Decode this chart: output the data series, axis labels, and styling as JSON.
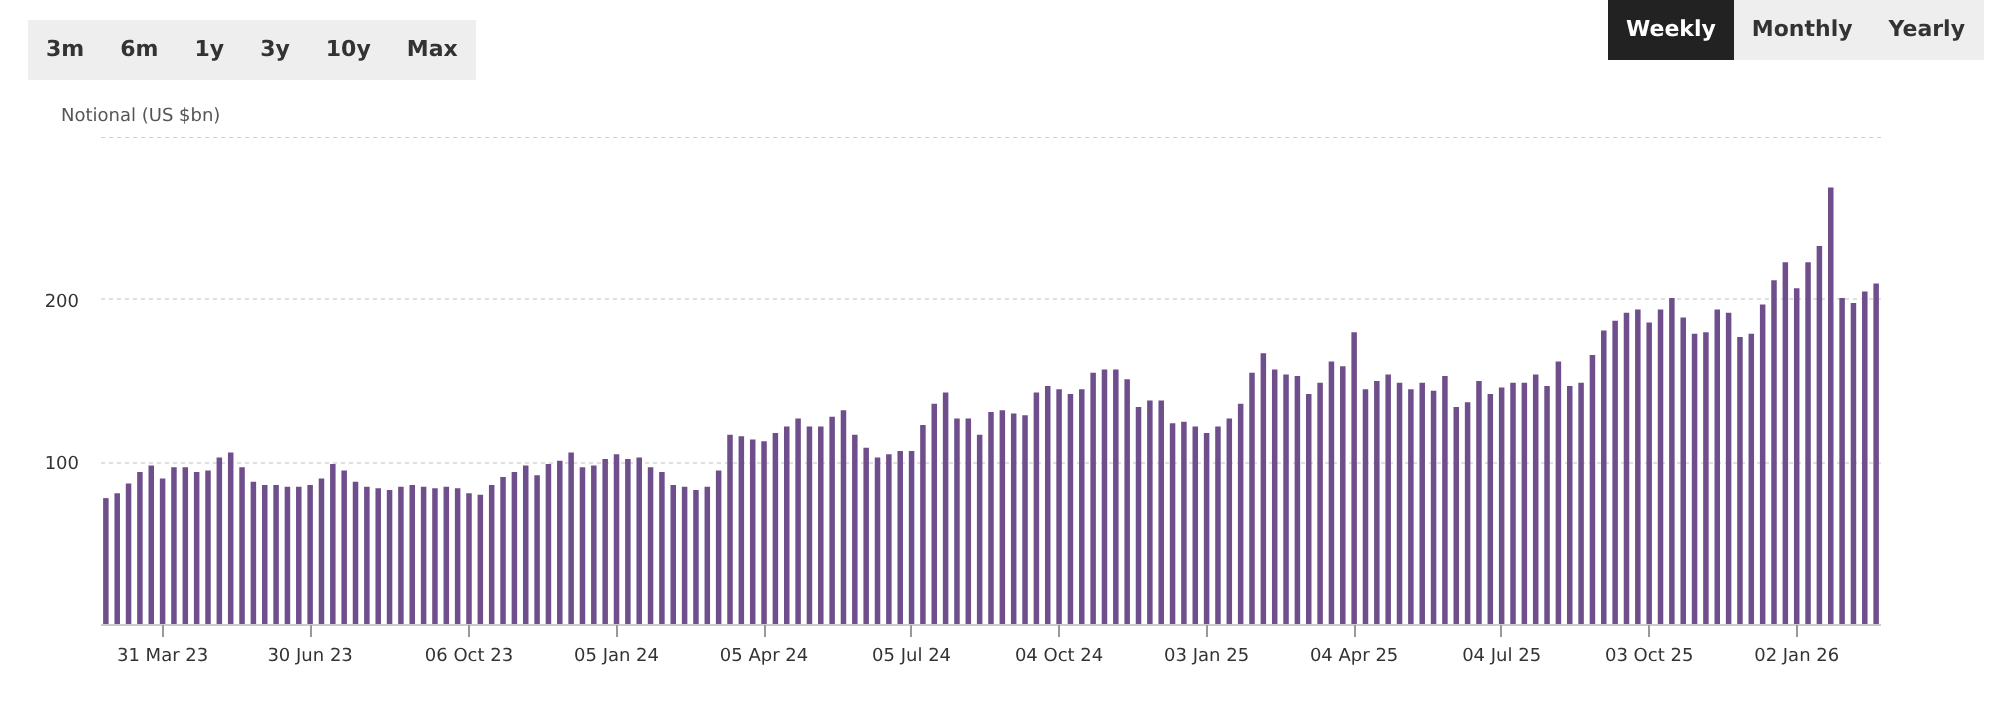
{
  "chart_data": {
    "type": "bar",
    "ylabel": "Notional (US $bn)",
    "annotations": [
      "3m",
      "6m",
      "1y",
      "3y",
      "10y",
      "Max",
      "Weekly",
      "Monthly",
      "Yearly"
    ],
    "x": [
      "2023-02-24",
      "2023-03-03",
      "2023-03-10",
      "2023-03-17",
      "2023-03-24",
      "2023-03-31",
      "2023-04-07",
      "2023-04-14",
      "2023-04-21",
      "2023-04-28",
      "2023-05-05",
      "2023-05-12",
      "2023-05-19",
      "2023-05-26",
      "2023-06-02",
      "2023-06-09",
      "2023-06-16",
      "2023-06-23",
      "2023-06-30",
      "2023-07-07",
      "2023-07-14",
      "2023-07-21",
      "2023-07-28",
      "2023-08-04",
      "2023-08-11",
      "2023-08-18",
      "2023-08-25",
      "2023-09-01",
      "2023-09-08",
      "2023-09-15",
      "2023-09-22",
      "2023-09-29",
      "2023-10-06",
      "2023-10-13",
      "2023-10-20",
      "2023-10-27",
      "2023-11-03",
      "2023-11-10",
      "2023-11-17",
      "2023-11-24",
      "2023-12-01",
      "2023-12-08",
      "2023-12-15",
      "2023-12-22",
      "2023-12-29",
      "2024-01-05",
      "2024-01-12",
      "2024-01-19",
      "2024-01-26",
      "2024-02-02",
      "2024-02-09",
      "2024-02-16",
      "2024-02-23",
      "2024-03-01",
      "2024-03-08",
      "2024-03-15",
      "2024-03-22",
      "2024-03-29",
      "2024-04-05",
      "2024-04-12",
      "2024-04-19",
      "2024-04-26",
      "2024-05-03",
      "2024-05-10",
      "2024-05-17",
      "2024-05-24",
      "2024-05-31",
      "2024-06-07",
      "2024-06-14",
      "2024-06-21",
      "2024-06-28",
      "2024-07-05",
      "2024-07-12",
      "2024-07-19",
      "2024-07-26",
      "2024-08-02",
      "2024-08-09",
      "2024-08-16",
      "2024-08-23",
      "2024-08-30",
      "2024-09-06",
      "2024-09-13",
      "2024-09-20",
      "2024-09-27",
      "2024-10-04",
      "2024-10-11",
      "2024-10-18",
      "2024-10-25",
      "2024-11-01",
      "2024-11-08",
      "2024-11-15",
      "2024-11-22",
      "2024-11-29",
      "2024-12-06",
      "2024-12-13",
      "2024-12-20",
      "2024-12-27",
      "2025-01-03",
      "2025-01-10",
      "2025-01-17",
      "2025-01-24",
      "2025-01-31",
      "2025-02-07",
      "2025-02-14",
      "2025-02-21",
      "2025-02-28",
      "2025-03-07",
      "2025-03-14",
      "2025-03-21",
      "2025-03-28",
      "2025-04-04",
      "2025-04-11",
      "2025-04-18",
      "2025-04-25",
      "2025-05-02",
      "2025-05-09",
      "2025-05-16",
      "2025-05-23",
      "2025-05-30",
      "2025-06-06",
      "2025-06-13",
      "2025-06-20",
      "2025-06-27",
      "2025-07-04",
      "2025-07-11",
      "2025-07-18",
      "2025-07-25",
      "2025-08-01",
      "2025-08-08",
      "2025-08-15",
      "2025-08-22",
      "2025-08-29",
      "2025-09-05",
      "2025-09-12",
      "2025-09-19",
      "2025-09-26",
      "2025-10-03",
      "2025-10-10",
      "2025-10-17",
      "2025-10-24",
      "2025-10-31",
      "2025-11-07",
      "2025-11-14",
      "2025-11-21",
      "2025-11-28",
      "2025-12-05",
      "2025-12-12",
      "2025-12-19",
      "2025-12-26",
      "2026-01-02",
      "2026-01-09",
      "2026-01-16",
      "2026-01-23",
      "2026-01-30",
      "2026-02-06",
      "2026-02-13",
      "2026-02-20"
    ],
    "values": [
      78,
      81,
      87,
      94,
      98,
      90,
      97,
      97,
      94,
      95,
      103,
      106,
      97,
      88,
      86,
      86,
      85,
      85,
      86,
      90,
      99,
      95,
      88,
      85,
      84,
      83,
      85,
      86,
      85,
      84,
      85,
      84,
      81,
      80,
      86,
      91,
      94,
      98,
      92,
      99,
      101,
      106,
      97,
      98,
      102,
      105,
      102,
      103,
      97,
      94,
      86,
      85,
      83,
      85,
      95,
      117,
      116,
      114,
      113,
      118,
      122,
      127,
      122,
      122,
      128,
      132,
      117,
      109,
      103,
      105,
      107,
      107,
      123,
      136,
      143,
      127,
      127,
      117,
      131,
      132,
      130,
      129,
      143,
      147,
      145,
      142,
      145,
      155,
      157,
      157,
      151,
      134,
      138,
      138,
      124,
      125,
      122,
      118,
      122,
      127,
      136,
      155,
      167,
      157,
      154,
      153,
      142,
      149,
      162,
      159,
      180,
      145,
      150,
      154,
      149,
      145,
      149,
      144,
      153,
      134,
      137,
      150,
      142,
      146,
      149,
      149,
      154,
      147,
      162,
      147,
      149,
      166,
      181,
      187,
      192,
      194,
      186,
      194,
      201,
      189,
      179,
      180,
      194,
      192,
      177,
      179,
      197,
      212,
      223,
      207,
      223,
      233,
      269,
      201,
      198,
      205,
      210
    ],
    "color": "#6f4e8c",
    "xlim": [
      "2023-02-21",
      "2026-02-23"
    ],
    "xticks": [
      {
        "value": "2023-03-31",
        "label": "31 Mar 23"
      },
      {
        "value": "2023-06-30",
        "label": "30 Jun 23"
      },
      {
        "value": "2023-10-06",
        "label": "06 Oct 23"
      },
      {
        "value": "2024-01-05",
        "label": "05 Jan 24"
      },
      {
        "value": "2024-04-05",
        "label": "05 Apr 24"
      },
      {
        "value": "2024-07-05",
        "label": "05 Jul 24"
      },
      {
        "value": "2024-10-04",
        "label": "04 Oct 24"
      },
      {
        "value": "2025-01-03",
        "label": "03 Jan 25"
      },
      {
        "value": "2025-04-04",
        "label": "04 Apr 25"
      },
      {
        "value": "2025-07-04",
        "label": "04 Jul 25"
      },
      {
        "value": "2025-10-03",
        "label": "03 Oct 25"
      },
      {
        "value": "2026-01-02",
        "label": "02 Jan 26"
      }
    ],
    "ylim": [
      0,
      300
    ],
    "yticks": [
      100,
      200,
      {
        "value": 300,
        "label": null
      }
    ],
    "grid": "y"
  }
}
